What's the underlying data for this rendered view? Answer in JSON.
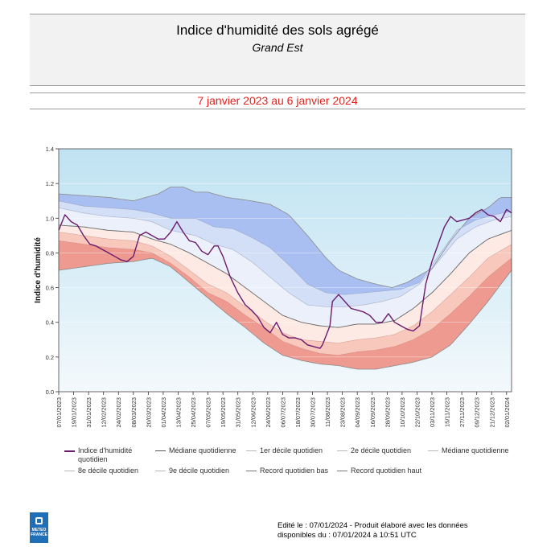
{
  "header": {
    "title": "Indice d'humidité des sols agrégé",
    "subtitle": "Grand Est",
    "period": "7 janvier 2023 au 6 janvier 2024"
  },
  "footer": {
    "line1": "Edité le : 07/01/2024 - Produit élaboré avec les données",
    "line2": "disponibles du : 07/01/2024 à 10:51 UTC",
    "logo_line1": "METEO",
    "logo_line2": "FRANCE"
  },
  "legend": [
    {
      "label": "Indice d'humidité quotidien",
      "color": "#6a1a6e",
      "style": "solid-thick"
    },
    {
      "label": "Médiane quotidienne",
      "color": "#555555",
      "style": "solid"
    },
    {
      "label": "1er décile quotidien",
      "color": "#b8b8b8",
      "style": "solid"
    },
    {
      "label": "2e décile quotidien",
      "color": "#b8b8b8",
      "style": "solid"
    },
    {
      "label": "Médiane quotidienne",
      "color": "#b8b8b8",
      "style": "solid"
    },
    {
      "label": "8e décile quotidien",
      "color": "#b8b8b8",
      "style": "solid"
    },
    {
      "label": "9e décile quotidien",
      "color": "#b8b8b8",
      "style": "solid"
    },
    {
      "label": "Record quotidien bas",
      "color": "#777777",
      "style": "solid"
    },
    {
      "label": "Record quotidien haut",
      "color": "#777777",
      "style": "solid"
    }
  ],
  "chart_data": {
    "type": "line",
    "ylabel": "Indice d'humidité",
    "xlabel": "",
    "ylim": [
      0,
      1.4
    ],
    "yticks": [
      0.0,
      0.2,
      0.4,
      0.6,
      0.8,
      1.0,
      1.2,
      1.4
    ],
    "xticks": [
      "07/01/2023",
      "19/01/2023",
      "31/01/2023",
      "12/02/2023",
      "24/02/2023",
      "08/03/2023",
      "20/03/2023",
      "01/04/2023",
      "13/04/2023",
      "25/04/2023",
      "07/05/2023",
      "19/05/2023",
      "31/05/2023",
      "12/06/2023",
      "24/06/2023",
      "06/07/2023",
      "18/07/2023",
      "30/07/2023",
      "11/08/2023",
      "23/08/2023",
      "04/09/2023",
      "16/09/2023",
      "28/09/2023",
      "10/10/2023",
      "22/10/2023",
      "03/11/2023",
      "15/11/2023",
      "27/11/2023",
      "09/12/2023",
      "21/12/2023",
      "02/01/2024"
    ],
    "x_start": "07/01/2023",
    "x_end": "06/01/2024",
    "colors": {
      "sky_top": "#bfe2f2",
      "sky_bottom": "#f3f9fc",
      "band_wet_outer": "#a9bff2",
      "band_wet_inner": "#d2dff7",
      "band_mid_wet": "#ecf0fa",
      "band_mid_dry": "#fdeae4",
      "band_dry_inner": "#f8c8bd",
      "band_dry_outer": "#ef9a90",
      "index_line": "#6a1a6e",
      "median_line": "#666666",
      "record_line": "#8a8a8a"
    },
    "series": [
      {
        "name": "Record quotidien haut",
        "values": [
          [
            0,
            1.14
          ],
          [
            20,
            1.13
          ],
          [
            40,
            1.12
          ],
          [
            60,
            1.1
          ],
          [
            80,
            1.14
          ],
          [
            90,
            1.18
          ],
          [
            100,
            1.18
          ],
          [
            110,
            1.15
          ],
          [
            120,
            1.15
          ],
          [
            135,
            1.12
          ],
          [
            155,
            1.1
          ],
          [
            170,
            1.08
          ],
          [
            185,
            1.02
          ],
          [
            200,
            0.9
          ],
          [
            215,
            0.77
          ],
          [
            225,
            0.7
          ],
          [
            240,
            0.65
          ],
          [
            255,
            0.62
          ],
          [
            268,
            0.6
          ],
          [
            280,
            0.63
          ],
          [
            300,
            0.71
          ],
          [
            315,
            0.87
          ],
          [
            330,
            1.0
          ],
          [
            345,
            1.06
          ],
          [
            355,
            1.12
          ],
          [
            364,
            1.12
          ]
        ]
      },
      {
        "name": "9e décile quotidien",
        "values": [
          [
            0,
            1.1
          ],
          [
            20,
            1.07
          ],
          [
            40,
            1.06
          ],
          [
            60,
            1.05
          ],
          [
            75,
            1.03
          ],
          [
            90,
            1.0
          ],
          [
            110,
            1.0
          ],
          [
            125,
            0.95
          ],
          [
            140,
            0.94
          ],
          [
            155,
            0.89
          ],
          [
            170,
            0.83
          ],
          [
            185,
            0.73
          ],
          [
            200,
            0.62
          ],
          [
            215,
            0.57
          ],
          [
            230,
            0.56
          ],
          [
            245,
            0.57
          ],
          [
            260,
            0.58
          ],
          [
            275,
            0.59
          ],
          [
            290,
            0.63
          ],
          [
            305,
            0.78
          ],
          [
            320,
            0.93
          ],
          [
            335,
            0.99
          ],
          [
            350,
            1.02
          ],
          [
            364,
            1.04
          ]
        ]
      },
      {
        "name": "8e décile quotidien",
        "values": [
          [
            0,
            1.06
          ],
          [
            20,
            1.03
          ],
          [
            40,
            1.01
          ],
          [
            60,
            1.0
          ],
          [
            75,
            0.98
          ],
          [
            90,
            0.93
          ],
          [
            110,
            0.9
          ],
          [
            125,
            0.85
          ],
          [
            140,
            0.82
          ],
          [
            155,
            0.75
          ],
          [
            170,
            0.66
          ],
          [
            185,
            0.57
          ],
          [
            200,
            0.5
          ],
          [
            215,
            0.49
          ],
          [
            230,
            0.49
          ],
          [
            245,
            0.5
          ],
          [
            260,
            0.52
          ],
          [
            275,
            0.55
          ],
          [
            290,
            0.62
          ],
          [
            305,
            0.75
          ],
          [
            320,
            0.88
          ],
          [
            335,
            0.95
          ],
          [
            350,
            0.99
          ],
          [
            364,
            1.01
          ]
        ]
      },
      {
        "name": "Médiane quotidienne",
        "values": [
          [
            0,
            0.96
          ],
          [
            20,
            0.95
          ],
          [
            40,
            0.93
          ],
          [
            60,
            0.92
          ],
          [
            75,
            0.88
          ],
          [
            90,
            0.85
          ],
          [
            105,
            0.8
          ],
          [
            120,
            0.74
          ],
          [
            135,
            0.68
          ],
          [
            150,
            0.6
          ],
          [
            165,
            0.52
          ],
          [
            180,
            0.44
          ],
          [
            195,
            0.4
          ],
          [
            210,
            0.38
          ],
          [
            225,
            0.37
          ],
          [
            240,
            0.39
          ],
          [
            255,
            0.39
          ],
          [
            270,
            0.41
          ],
          [
            285,
            0.48
          ],
          [
            300,
            0.57
          ],
          [
            315,
            0.68
          ],
          [
            330,
            0.8
          ],
          [
            345,
            0.88
          ],
          [
            364,
            0.93
          ]
        ]
      },
      {
        "name": "2e décile quotidien",
        "values": [
          [
            0,
            0.92
          ],
          [
            20,
            0.9
          ],
          [
            40,
            0.88
          ],
          [
            60,
            0.87
          ],
          [
            75,
            0.84
          ],
          [
            90,
            0.78
          ],
          [
            105,
            0.7
          ],
          [
            120,
            0.62
          ],
          [
            135,
            0.57
          ],
          [
            150,
            0.49
          ],
          [
            165,
            0.41
          ],
          [
            180,
            0.34
          ],
          [
            195,
            0.3
          ],
          [
            210,
            0.29
          ],
          [
            225,
            0.28
          ],
          [
            240,
            0.3
          ],
          [
            255,
            0.31
          ],
          [
            270,
            0.33
          ],
          [
            285,
            0.38
          ],
          [
            300,
            0.46
          ],
          [
            315,
            0.56
          ],
          [
            330,
            0.66
          ],
          [
            345,
            0.77
          ],
          [
            364,
            0.85
          ]
        ]
      },
      {
        "name": "1er décile quotidien",
        "values": [
          [
            0,
            0.87
          ],
          [
            20,
            0.85
          ],
          [
            40,
            0.83
          ],
          [
            60,
            0.82
          ],
          [
            75,
            0.8
          ],
          [
            90,
            0.74
          ],
          [
            105,
            0.66
          ],
          [
            120,
            0.57
          ],
          [
            135,
            0.52
          ],
          [
            150,
            0.44
          ],
          [
            165,
            0.37
          ],
          [
            180,
            0.29
          ],
          [
            195,
            0.25
          ],
          [
            210,
            0.22
          ],
          [
            225,
            0.21
          ],
          [
            240,
            0.23
          ],
          [
            255,
            0.24
          ],
          [
            270,
            0.26
          ],
          [
            285,
            0.3
          ],
          [
            300,
            0.36
          ],
          [
            315,
            0.45
          ],
          [
            330,
            0.55
          ],
          [
            345,
            0.66
          ],
          [
            364,
            0.77
          ]
        ]
      },
      {
        "name": "Record quotidien bas",
        "values": [
          [
            0,
            0.7
          ],
          [
            20,
            0.72
          ],
          [
            40,
            0.74
          ],
          [
            60,
            0.75
          ],
          [
            75,
            0.77
          ],
          [
            90,
            0.72
          ],
          [
            105,
            0.63
          ],
          [
            120,
            0.54
          ],
          [
            135,
            0.45
          ],
          [
            150,
            0.37
          ],
          [
            165,
            0.28
          ],
          [
            180,
            0.21
          ],
          [
            195,
            0.18
          ],
          [
            210,
            0.16
          ],
          [
            225,
            0.15
          ],
          [
            240,
            0.13
          ],
          [
            255,
            0.13
          ],
          [
            270,
            0.15
          ],
          [
            285,
            0.17
          ],
          [
            300,
            0.2
          ],
          [
            315,
            0.27
          ],
          [
            330,
            0.39
          ],
          [
            345,
            0.52
          ],
          [
            364,
            0.7
          ]
        ]
      },
      {
        "name": "Indice d'humidité quotidien",
        "values": [
          [
            0,
            0.93
          ],
          [
            5,
            1.02
          ],
          [
            10,
            0.98
          ],
          [
            15,
            0.96
          ],
          [
            20,
            0.9
          ],
          [
            25,
            0.85
          ],
          [
            30,
            0.84
          ],
          [
            35,
            0.82
          ],
          [
            40,
            0.8
          ],
          [
            45,
            0.78
          ],
          [
            50,
            0.76
          ],
          [
            55,
            0.75
          ],
          [
            60,
            0.78
          ],
          [
            65,
            0.9
          ],
          [
            70,
            0.92
          ],
          [
            75,
            0.9
          ],
          [
            80,
            0.88
          ],
          [
            85,
            0.88
          ],
          [
            90,
            0.92
          ],
          [
            95,
            0.98
          ],
          [
            100,
            0.92
          ],
          [
            105,
            0.87
          ],
          [
            110,
            0.86
          ],
          [
            115,
            0.81
          ],
          [
            120,
            0.79
          ],
          [
            125,
            0.84
          ],
          [
            128,
            0.84
          ],
          [
            132,
            0.78
          ],
          [
            138,
            0.66
          ],
          [
            144,
            0.57
          ],
          [
            150,
            0.5
          ],
          [
            155,
            0.47
          ],
          [
            160,
            0.43
          ],
          [
            165,
            0.37
          ],
          [
            170,
            0.34
          ],
          [
            175,
            0.4
          ],
          [
            180,
            0.33
          ],
          [
            185,
            0.31
          ],
          [
            190,
            0.31
          ],
          [
            195,
            0.3
          ],
          [
            200,
            0.27
          ],
          [
            205,
            0.26
          ],
          [
            210,
            0.25
          ],
          [
            212,
            0.27
          ],
          [
            218,
            0.38
          ],
          [
            220,
            0.52
          ],
          [
            225,
            0.56
          ],
          [
            230,
            0.52
          ],
          [
            235,
            0.48
          ],
          [
            240,
            0.47
          ],
          [
            245,
            0.46
          ],
          [
            250,
            0.44
          ],
          [
            255,
            0.4
          ],
          [
            260,
            0.4
          ],
          [
            265,
            0.45
          ],
          [
            270,
            0.4
          ],
          [
            275,
            0.38
          ],
          [
            280,
            0.36
          ],
          [
            285,
            0.35
          ],
          [
            290,
            0.38
          ],
          [
            295,
            0.62
          ],
          [
            300,
            0.75
          ],
          [
            305,
            0.85
          ],
          [
            310,
            0.95
          ],
          [
            315,
            1.01
          ],
          [
            320,
            0.98
          ],
          [
            325,
            0.99
          ],
          [
            330,
            1.0
          ],
          [
            335,
            1.03
          ],
          [
            340,
            1.05
          ],
          [
            345,
            1.02
          ],
          [
            350,
            1.01
          ],
          [
            355,
            0.98
          ],
          [
            360,
            1.05
          ],
          [
            364,
            1.03
          ]
        ]
      }
    ]
  }
}
